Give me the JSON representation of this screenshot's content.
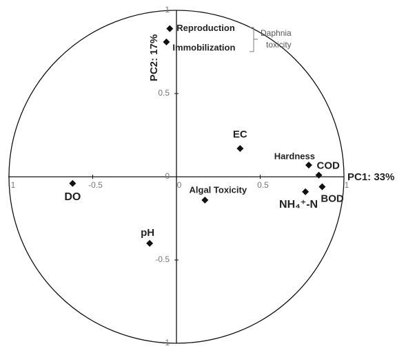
{
  "chart_data": {
    "type": "scatter",
    "x_axis_label": "PC1: 33%",
    "y_axis_label": "PC2: 17%",
    "labels": [
      "Reproduction",
      "Immobilization",
      "EC",
      "Hardness",
      "COD",
      "NH₄⁺-N",
      "BOD",
      "Algal Toxicity",
      "DO",
      "pH"
    ],
    "x": [
      -0.04,
      -0.06,
      0.38,
      0.79,
      0.85,
      0.77,
      0.87,
      0.17,
      -0.62,
      -0.16
    ],
    "values": [
      0.89,
      0.81,
      0.17,
      0.07,
      0.01,
      -0.09,
      -0.06,
      -0.14,
      -0.04,
      -0.4
    ],
    "color": "#111111",
    "xlim": [
      -1,
      1
    ],
    "ylim": [
      -1,
      1
    ],
    "xticks": [
      -1,
      -0.5,
      0,
      0.5,
      1
    ],
    "yticks": [
      -1,
      -0.5,
      0,
      0.5,
      1
    ],
    "annotation_lines": [
      "Daphnia",
      "toxicity"
    ]
  }
}
